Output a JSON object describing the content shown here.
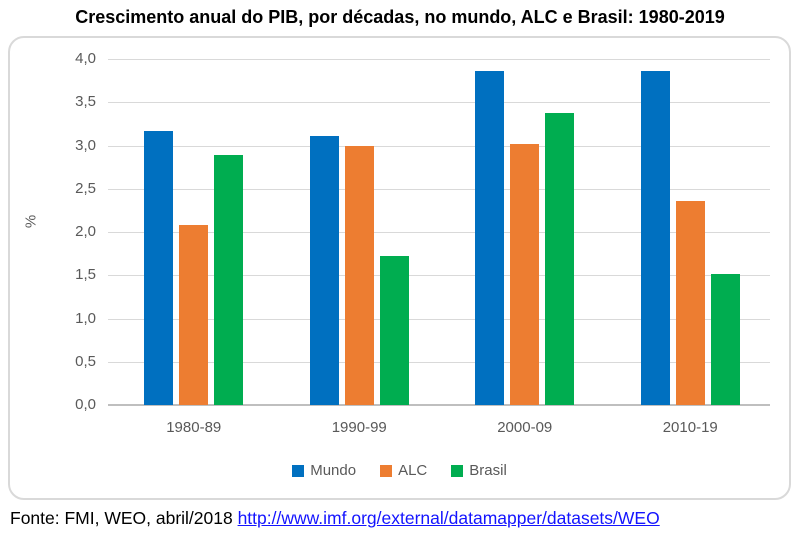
{
  "title": "Crescimento anual do PIB, por décadas, no mundo, ALC e Brasil: 1980-2019",
  "footer": {
    "source_text": "Fonte: FMI, WEO, abril/2018 ",
    "link_text": "http://www.imf.org/external/datamapper/datasets/WEO"
  },
  "colors": {
    "mundo": "#0070C0",
    "alc": "#ED7D31",
    "brasil": "#00AD50",
    "axis_text": "#595959",
    "gridline": "#D9D9D9",
    "axis_line": "#BFBFBF",
    "link": "#1414FF"
  },
  "chart_data": {
    "type": "bar",
    "title": "Crescimento anual do PIB, por décadas, no mundo, ALC e Brasil: 1980-2019",
    "xlabel": "",
    "ylabel": "%",
    "categories": [
      "1980-89",
      "1990-99",
      "2000-09",
      "2010-19"
    ],
    "series": [
      {
        "name": "Mundo",
        "color": "#0070C0",
        "values": [
          3.17,
          3.11,
          3.86,
          3.86
        ]
      },
      {
        "name": "ALC",
        "color": "#ED7D31",
        "values": [
          2.08,
          3.0,
          3.02,
          2.36
        ]
      },
      {
        "name": "Brasil",
        "color": "#00AD50",
        "values": [
          2.89,
          1.72,
          3.38,
          1.52
        ]
      }
    ],
    "ylim": [
      0,
      4
    ],
    "ytick_step": 0.5,
    "ytick_labels": [
      "0,0",
      "0,5",
      "1,0",
      "1,5",
      "2,0",
      "2,5",
      "3,0",
      "3,5",
      "4,0"
    ],
    "grid": true,
    "legend_position": "bottom"
  }
}
